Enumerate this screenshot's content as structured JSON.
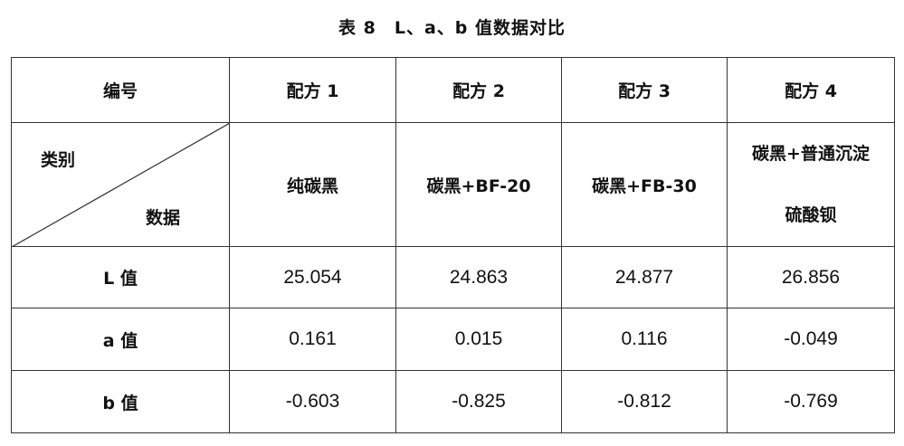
{
  "title": "表 8　L、a、b 值数据对比",
  "table": {
    "corner_header": "编号",
    "corner_row_label": "类别",
    "corner_col_label": "数据",
    "columns": [
      "配方 1",
      "配方 2",
      "配方 3",
      "配方 4"
    ],
    "categories": [
      "纯碳黑",
      "碳黑+BF-20",
      "碳黑+FB-30",
      "碳黑+普通沉淀"
    ],
    "category_4_line2": "硫酸钡",
    "rows": [
      {
        "label": "L 值",
        "values": [
          "25.054",
          "24.863",
          "24.877",
          "26.856"
        ]
      },
      {
        "label": "a 值",
        "values": [
          "0.161",
          "0.015",
          "0.116",
          "-0.049"
        ]
      },
      {
        "label": "b 值",
        "values": [
          "-0.603",
          "-0.825",
          "-0.812",
          "-0.769"
        ]
      }
    ]
  }
}
